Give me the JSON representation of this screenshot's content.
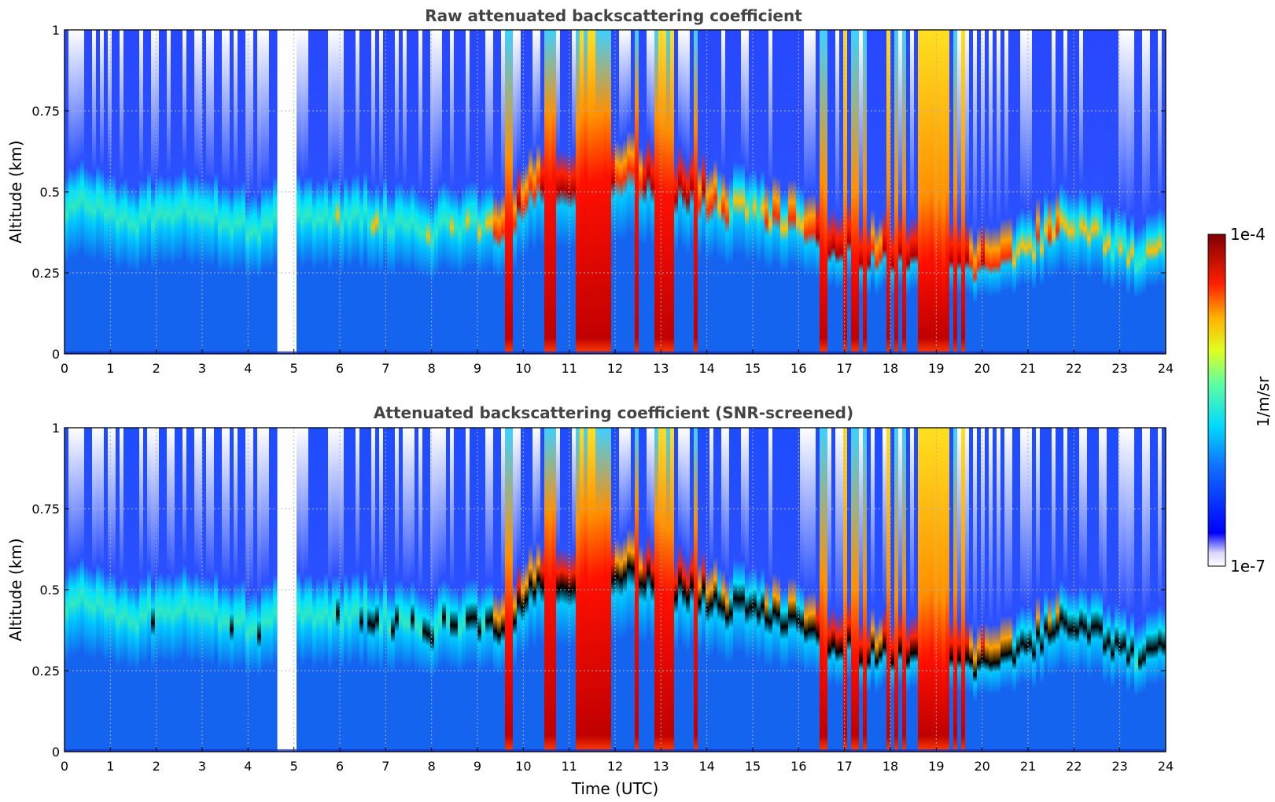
{
  "chart_data": [
    {
      "type": "heatmap",
      "title": "Raw attenuated backscattering coefficient",
      "xlabel": "",
      "ylabel": "Altitude (km)",
      "xlim": [
        0,
        24
      ],
      "ylim": [
        0,
        1
      ],
      "xticks": [
        "0",
        "1",
        "2",
        "3",
        "4",
        "5",
        "6",
        "7",
        "8",
        "9",
        "10",
        "11",
        "12",
        "13",
        "14",
        "15",
        "16",
        "17",
        "18",
        "19",
        "20",
        "21",
        "22",
        "23",
        "24"
      ],
      "yticks": [
        "0",
        "0.25",
        "0.5",
        "0.75",
        "1"
      ],
      "grid": true,
      "data_gap": [
        4.6,
        5.05
      ],
      "boundary_layer_top_km": [
        0.44,
        0.46,
        0.42,
        0.4,
        0.44,
        0.44,
        0.42,
        0.4,
        0.36,
        0.45,
        0.42,
        0.4,
        0.43,
        0.4,
        0.4,
        0.37,
        0.4,
        0.4,
        0.38,
        0.5,
        0.52,
        0.52,
        0.55,
        0.56,
        0.52,
        0.5,
        0.48,
        0.44,
        0.45,
        0.42,
        0.4,
        0.32,
        0.32,
        0.3,
        0.3,
        0.3,
        0.28,
        0.26,
        0.26,
        0.3,
        0.35,
        0.4,
        0.37,
        0.32,
        0.28,
        0.32
      ],
      "cloud_intensity_profile": [
        0.2,
        0.2,
        0.3,
        0.2,
        0.2,
        0.2,
        0.2,
        0.2,
        0.2,
        0.0,
        0.2,
        0.3,
        0.3,
        0.3,
        0.2,
        0.3,
        0.3,
        0.3,
        0.8,
        0.7,
        0.9,
        0.95,
        0.9,
        0.6,
        0.9,
        0.95,
        0.8,
        0.5,
        0.4,
        0.5,
        0.6,
        0.95,
        0.8,
        0.7,
        0.9,
        0.95,
        0.95,
        0.8,
        0.6,
        0.5,
        0.6,
        0.5,
        0.5,
        0.4,
        0.4,
        0.4
      ],
      "colorbar": {
        "label": "1/m/sr",
        "min_label": "1e-7",
        "max_label": "1e-4",
        "colormap": "jet",
        "scale": "log"
      }
    },
    {
      "type": "heatmap",
      "title": "Attenuated backscattering coefficient (SNR-screened)",
      "xlabel": "Time (UTC)",
      "ylabel": "Altitude (km)",
      "xlim": [
        0,
        24
      ],
      "ylim": [
        0,
        1
      ],
      "xticks": [
        "0",
        "1",
        "2",
        "3",
        "4",
        "5",
        "6",
        "7",
        "8",
        "9",
        "10",
        "11",
        "12",
        "13",
        "14",
        "15",
        "16",
        "17",
        "18",
        "19",
        "20",
        "21",
        "22",
        "23",
        "24"
      ],
      "yticks": [
        "0",
        "0.25",
        "0.5",
        "0.75",
        "1"
      ],
      "grid": true,
      "data_gap": [
        4.6,
        5.05
      ],
      "saturated_values_color": "#000000",
      "colorbar": {
        "label": "1/m/sr",
        "min_label": "1e-7",
        "max_label": "1e-4",
        "colormap": "jet",
        "scale": "log"
      }
    }
  ]
}
